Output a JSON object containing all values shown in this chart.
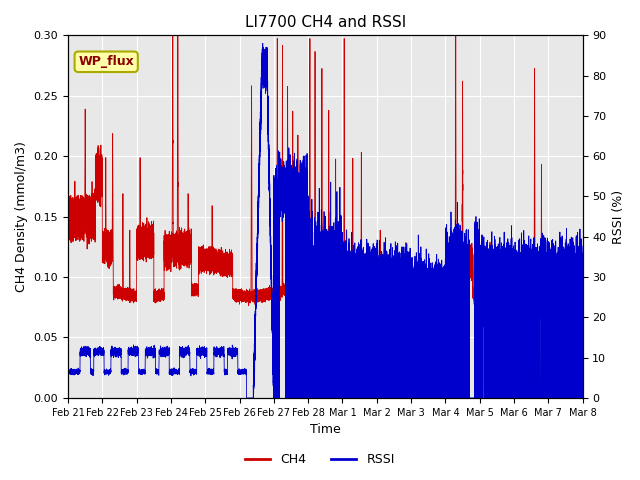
{
  "title": "LI7700 CH4 and RSSI",
  "xlabel": "Time",
  "ylabel_left": "CH4 Density (mmol/m3)",
  "ylabel_right": "RSSI (%)",
  "site_label": "WP_flux",
  "ylim_left": [
    0.0,
    0.3
  ],
  "ylim_right": [
    0,
    90
  ],
  "yticks_left": [
    0.0,
    0.05,
    0.1,
    0.15,
    0.2,
    0.25,
    0.3
  ],
  "yticks_right": [
    0,
    10,
    20,
    30,
    40,
    50,
    60,
    70,
    80,
    90
  ],
  "xtick_labels": [
    "Feb 21",
    "Feb 22",
    "Feb 23",
    "Feb 24",
    "Feb 25",
    "Feb 26",
    "Feb 27",
    "Feb 28",
    "Mar 1",
    "Mar 2",
    "Mar 3",
    "Mar 4",
    "Mar 5",
    "Mar 6",
    "Mar 7",
    "Mar 8"
  ],
  "ch4_color": "#cc0000",
  "rssi_color": "#0000cc",
  "bg_color": "#e8e8e8",
  "legend_items": [
    "CH4",
    "RSSI"
  ],
  "legend_colors": [
    "#cc0000",
    "#0000cc"
  ],
  "title_fontsize": 11,
  "axis_fontsize": 9,
  "tick_fontsize": 8,
  "legend_fontsize": 9
}
